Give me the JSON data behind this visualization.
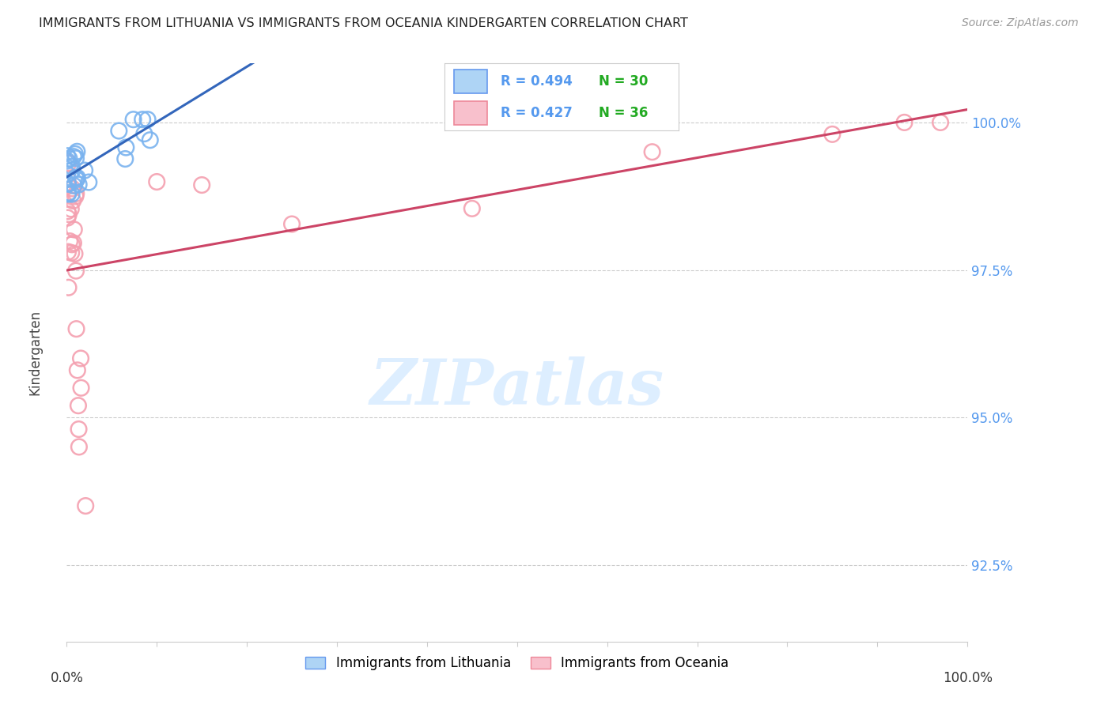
{
  "title": "IMMIGRANTS FROM LITHUANIA VS IMMIGRANTS FROM OCEANIA KINDERGARTEN CORRELATION CHART",
  "source": "Source: ZipAtlas.com",
  "ylabel": "Kindergarten",
  "yticks": [
    92.5,
    95.0,
    97.5,
    100.0
  ],
  "ytick_labels": [
    "92.5%",
    "95.0%",
    "97.5%",
    "100.0%"
  ],
  "xlim": [
    0.0,
    1.0
  ],
  "ylim": [
    91.2,
    101.0
  ],
  "R1": 0.494,
  "N1": 30,
  "R2": 0.427,
  "N2": 36,
  "blue_scatter_color": "#7ab3ef",
  "pink_scatter_color": "#f4a0b0",
  "blue_line_color": "#3366bb",
  "pink_line_color": "#cc4466",
  "blue_legend_face": "#aed4f5",
  "blue_legend_edge": "#6699ee",
  "pink_legend_face": "#f8c0cc",
  "pink_legend_edge": "#ee8899",
  "ytick_color": "#5599ee",
  "watermark_color": "#ddeeff",
  "grid_color": "#cccccc",
  "bottom_legend_label1": "Immigrants from Lithuania",
  "bottom_legend_label2": "Immigrants from Oceania"
}
